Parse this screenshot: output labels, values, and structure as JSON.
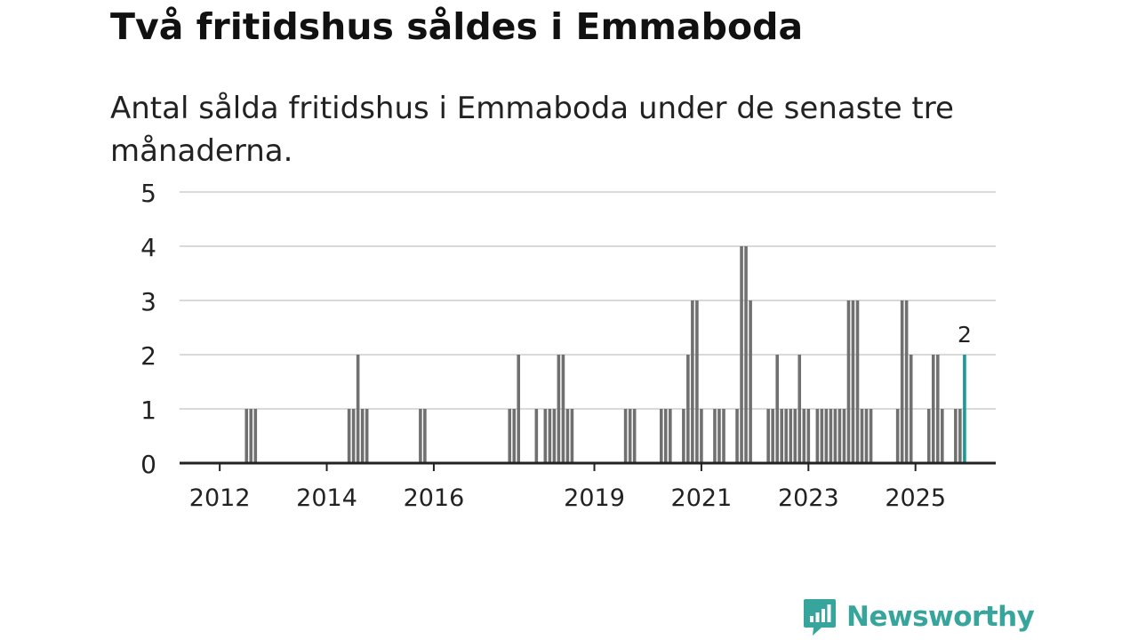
{
  "header": {
    "title": "Två fritidshus såldes i Emmaboda",
    "subtitle": "Antal sålda fritidshus i Emmaboda under de senaste tre månaderna."
  },
  "chart_data": {
    "type": "bar",
    "title": "Två fritidshus såldes i Emmaboda",
    "subtitle": "Antal sålda fritidshus i Emmaboda under de senaste tre månaderna.",
    "xlabel": "",
    "ylabel": "",
    "ylim": [
      0,
      5
    ],
    "yticks": [
      0,
      1,
      2,
      3,
      4,
      5
    ],
    "x_range": [
      2011.25,
      2026.5
    ],
    "xticks": [
      {
        "value": 2012,
        "label": "2012"
      },
      {
        "value": 2014,
        "label": "2014"
      },
      {
        "value": 2016,
        "label": "2016"
      },
      {
        "value": 2019,
        "label": "2019"
      },
      {
        "value": 2021,
        "label": "2021"
      },
      {
        "value": 2023,
        "label": "2023"
      },
      {
        "value": 2025,
        "label": "2025"
      }
    ],
    "bar_width_years": 0.0595,
    "series": [
      {
        "name": "Antal sålda fritidshus",
        "points": [
          {
            "x": 2012.5,
            "y": 1
          },
          {
            "x": 2012.583,
            "y": 1
          },
          {
            "x": 2012.667,
            "y": 1
          },
          {
            "x": 2014.417,
            "y": 1
          },
          {
            "x": 2014.5,
            "y": 1
          },
          {
            "x": 2014.583,
            "y": 2
          },
          {
            "x": 2014.667,
            "y": 1
          },
          {
            "x": 2014.75,
            "y": 1
          },
          {
            "x": 2015.75,
            "y": 1
          },
          {
            "x": 2015.833,
            "y": 1
          },
          {
            "x": 2017.417,
            "y": 1
          },
          {
            "x": 2017.5,
            "y": 1
          },
          {
            "x": 2017.583,
            "y": 2
          },
          {
            "x": 2017.917,
            "y": 1
          },
          {
            "x": 2018.083,
            "y": 1
          },
          {
            "x": 2018.167,
            "y": 1
          },
          {
            "x": 2018.25,
            "y": 1
          },
          {
            "x": 2018.333,
            "y": 2
          },
          {
            "x": 2018.417,
            "y": 2
          },
          {
            "x": 2018.5,
            "y": 1
          },
          {
            "x": 2018.583,
            "y": 1
          },
          {
            "x": 2019.583,
            "y": 1
          },
          {
            "x": 2019.667,
            "y": 1
          },
          {
            "x": 2019.75,
            "y": 1
          },
          {
            "x": 2020.25,
            "y": 1
          },
          {
            "x": 2020.333,
            "y": 1
          },
          {
            "x": 2020.417,
            "y": 1
          },
          {
            "x": 2020.667,
            "y": 1
          },
          {
            "x": 2020.75,
            "y": 2
          },
          {
            "x": 2020.833,
            "y": 3
          },
          {
            "x": 2020.917,
            "y": 3
          },
          {
            "x": 2021.0,
            "y": 1
          },
          {
            "x": 2021.25,
            "y": 1
          },
          {
            "x": 2021.333,
            "y": 1
          },
          {
            "x": 2021.417,
            "y": 1
          },
          {
            "x": 2021.667,
            "y": 1
          },
          {
            "x": 2021.75,
            "y": 4
          },
          {
            "x": 2021.833,
            "y": 4
          },
          {
            "x": 2021.917,
            "y": 3
          },
          {
            "x": 2022.25,
            "y": 1
          },
          {
            "x": 2022.333,
            "y": 1
          },
          {
            "x": 2022.417,
            "y": 2
          },
          {
            "x": 2022.5,
            "y": 1
          },
          {
            "x": 2022.583,
            "y": 1
          },
          {
            "x": 2022.667,
            "y": 1
          },
          {
            "x": 2022.75,
            "y": 1
          },
          {
            "x": 2022.833,
            "y": 2
          },
          {
            "x": 2022.917,
            "y": 1
          },
          {
            "x": 2023.0,
            "y": 1
          },
          {
            "x": 2023.167,
            "y": 1
          },
          {
            "x": 2023.25,
            "y": 1
          },
          {
            "x": 2023.333,
            "y": 1
          },
          {
            "x": 2023.417,
            "y": 1
          },
          {
            "x": 2023.5,
            "y": 1
          },
          {
            "x": 2023.583,
            "y": 1
          },
          {
            "x": 2023.667,
            "y": 1
          },
          {
            "x": 2023.75,
            "y": 3
          },
          {
            "x": 2023.833,
            "y": 3
          },
          {
            "x": 2023.917,
            "y": 3
          },
          {
            "x": 2024.0,
            "y": 1
          },
          {
            "x": 2024.083,
            "y": 1
          },
          {
            "x": 2024.167,
            "y": 1
          },
          {
            "x": 2024.667,
            "y": 1
          },
          {
            "x": 2024.75,
            "y": 3
          },
          {
            "x": 2024.833,
            "y": 3
          },
          {
            "x": 2024.917,
            "y": 2
          },
          {
            "x": 2025.25,
            "y": 1
          },
          {
            "x": 2025.333,
            "y": 2
          },
          {
            "x": 2025.417,
            "y": 2
          },
          {
            "x": 2025.5,
            "y": 1
          },
          {
            "x": 2025.75,
            "y": 1
          },
          {
            "x": 2025.833,
            "y": 1
          },
          {
            "x": 2025.917,
            "y": 2
          }
        ]
      }
    ],
    "highlight": {
      "x": 2025.917,
      "y": 2,
      "label": "2"
    },
    "colors": {
      "bar": "#707070",
      "highlight": "#1a9a96",
      "grid": "#d9d9d9",
      "axis": "#222222",
      "text": "#222222"
    }
  },
  "branding": {
    "logo_text": "Newsworthy",
    "logo_color": "#37a59b",
    "logo_icon": "bar-chart-speech-bubble-icon"
  }
}
